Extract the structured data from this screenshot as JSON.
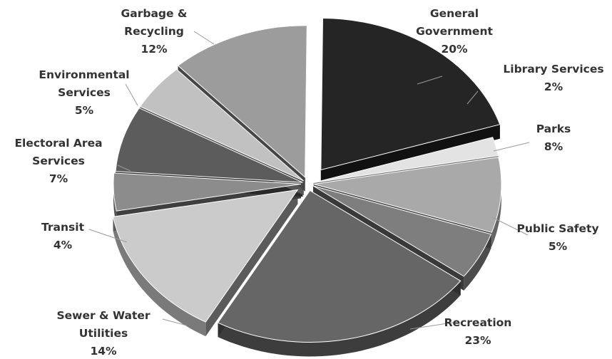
{
  "chart_data": {
    "type": "pie",
    "title": "",
    "legend": "none",
    "slices": [
      {
        "label": [
          "General",
          "Government"
        ],
        "pct_label": "20%",
        "value": 20,
        "color": "#252525"
      },
      {
        "label": [
          "Library Services"
        ],
        "pct_label": "2%",
        "value": 2,
        "color": "#e3e3e3"
      },
      {
        "label": [
          "Parks"
        ],
        "pct_label": "8%",
        "value": 8,
        "color": "#a9a9a9"
      },
      {
        "label": [
          "Public Safety"
        ],
        "pct_label": "5%",
        "value": 5,
        "color": "#7e7e7e"
      },
      {
        "label": [
          "Recreation"
        ],
        "pct_label": "23%",
        "value": 23,
        "color": "#666666"
      },
      {
        "label": [
          "Sewer & Water",
          "Utilities"
        ],
        "pct_label": "14%",
        "value": 14,
        "color": "#cbcbcb"
      },
      {
        "label": [
          "Transit"
        ],
        "pct_label": "4%",
        "value": 4,
        "color": "#8c8c8c"
      },
      {
        "label": [
          "Electoral Area",
          "Services"
        ],
        "pct_label": "7%",
        "value": 7,
        "color": "#5c5c5c"
      },
      {
        "label": [
          "Environmental",
          "Services"
        ],
        "pct_label": "5%",
        "value": 5,
        "color": "#c1c1c1"
      },
      {
        "label": [
          "Garbage &",
          "Recycling"
        ],
        "pct_label": "12%",
        "value": 12,
        "color": "#9c9c9c"
      }
    ]
  }
}
